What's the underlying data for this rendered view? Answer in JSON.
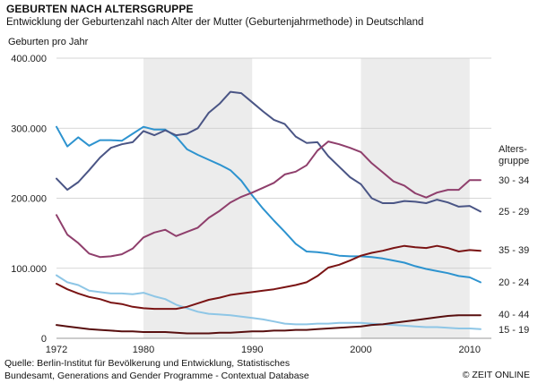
{
  "header": {
    "title": "GEBURTEN NACH ALTERSGRUPPE",
    "subtitle": "Entwicklung der Geburtenzahl nach Alter der Mutter (Geburtenjahrmethode) in Deutschland"
  },
  "chart_data": {
    "type": "line",
    "title": "GEBURTEN NACH ALTERSGRUPPE",
    "subtitle": "Entwicklung der Geburtenzahl nach Alter der Mutter (Geburtenjahrmethode) in Deutschland",
    "ylabel": "Geburten pro Jahr",
    "xlabel": "",
    "xlim": [
      1972,
      2012
    ],
    "ylim": [
      0,
      400000
    ],
    "x_ticks": [
      {
        "value": 1972,
        "label": "1972"
      },
      {
        "value": 1980,
        "label": "1980"
      },
      {
        "value": 1990,
        "label": "1990"
      },
      {
        "value": 2000,
        "label": "2000"
      },
      {
        "value": 2010,
        "label": "2010"
      }
    ],
    "y_ticks": [
      {
        "value": 0,
        "label": "0"
      },
      {
        "value": 100000,
        "label": "100.000"
      },
      {
        "value": 200000,
        "label": "200.000"
      },
      {
        "value": 300000,
        "label": "300.000"
      },
      {
        "value": 400000,
        "label": "400.000"
      }
    ],
    "grid": true,
    "shaded_decades": [
      [
        1980,
        1990
      ],
      [
        2000,
        2010
      ]
    ],
    "legend_title": "Alters-\ngruppe",
    "legend_placement": "right, end of lines",
    "series": [
      {
        "name": "15 - 19",
        "color": "#8ec6e6",
        "x": [
          1972,
          1973,
          1974,
          1975,
          1976,
          1977,
          1978,
          1979,
          1980,
          1981,
          1982,
          1983,
          1984,
          1985,
          1986,
          1987,
          1988,
          1989,
          1990,
          1991,
          1992,
          1993,
          1994,
          1995,
          1996,
          1997,
          1998,
          1999,
          2000,
          2001,
          2002,
          2003,
          2004,
          2005,
          2006,
          2007,
          2008,
          2009,
          2010,
          2011
        ],
        "y": [
          90000,
          80000,
          76000,
          68000,
          66000,
          64000,
          64000,
          63000,
          65000,
          60000,
          56000,
          48000,
          43000,
          38000,
          35000,
          34000,
          33000,
          31000,
          29000,
          27000,
          24000,
          21000,
          20000,
          20000,
          21000,
          21000,
          22000,
          22000,
          22000,
          21000,
          20000,
          19000,
          18000,
          17000,
          16000,
          16000,
          15000,
          14000,
          14000,
          13000
        ]
      },
      {
        "name": "20 - 24",
        "color": "#2d93cf",
        "x": [
          1972,
          1973,
          1974,
          1975,
          1976,
          1977,
          1978,
          1979,
          1980,
          1981,
          1982,
          1983,
          1984,
          1985,
          1986,
          1987,
          1988,
          1989,
          1990,
          1991,
          1992,
          1993,
          1994,
          1995,
          1996,
          1997,
          1998,
          1999,
          2000,
          2001,
          2002,
          2003,
          2004,
          2005,
          2006,
          2007,
          2008,
          2009,
          2010,
          2011
        ],
        "y": [
          302000,
          274000,
          287000,
          275000,
          283000,
          283000,
          282000,
          292000,
          302000,
          298000,
          298000,
          288000,
          270000,
          262000,
          255000,
          248000,
          240000,
          225000,
          204000,
          185000,
          168000,
          152000,
          135000,
          124000,
          123000,
          121000,
          118000,
          117000,
          117000,
          116000,
          114000,
          111000,
          108000,
          103000,
          99000,
          96000,
          93000,
          89000,
          87000,
          80000
        ]
      },
      {
        "name": "25 - 29",
        "color": "#4a5585",
        "x": [
          1972,
          1973,
          1974,
          1975,
          1976,
          1977,
          1978,
          1979,
          1980,
          1981,
          1982,
          1983,
          1984,
          1985,
          1986,
          1987,
          1988,
          1989,
          1990,
          1991,
          1992,
          1993,
          1994,
          1995,
          1996,
          1997,
          1998,
          1999,
          2000,
          2001,
          2002,
          2003,
          2004,
          2005,
          2006,
          2007,
          2008,
          2009,
          2010,
          2011
        ],
        "y": [
          228000,
          212000,
          223000,
          240000,
          258000,
          272000,
          277000,
          280000,
          296000,
          290000,
          297000,
          290000,
          292000,
          300000,
          322000,
          335000,
          352000,
          350000,
          337000,
          324000,
          312000,
          306000,
          288000,
          279000,
          280000,
          260000,
          245000,
          230000,
          220000,
          200000,
          193000,
          193000,
          196000,
          195000,
          193000,
          198000,
          194000,
          188000,
          189000,
          181000
        ]
      },
      {
        "name": "30 - 34",
        "color": "#8f3f6c",
        "x": [
          1972,
          1973,
          1974,
          1975,
          1976,
          1977,
          1978,
          1979,
          1980,
          1981,
          1982,
          1983,
          1984,
          1985,
          1986,
          1987,
          1988,
          1989,
          1990,
          1991,
          1992,
          1993,
          1994,
          1995,
          1996,
          1997,
          1998,
          1999,
          2000,
          2001,
          2002,
          2003,
          2004,
          2005,
          2006,
          2007,
          2008,
          2009,
          2010,
          2011
        ],
        "y": [
          176000,
          148000,
          136000,
          121000,
          116000,
          117000,
          120000,
          128000,
          144000,
          151000,
          155000,
          146000,
          152000,
          158000,
          172000,
          182000,
          194000,
          202000,
          208000,
          215000,
          222000,
          234000,
          238000,
          247000,
          268000,
          281000,
          277000,
          272000,
          266000,
          250000,
          237000,
          224000,
          218000,
          207000,
          201000,
          208000,
          212000,
          212000,
          226000,
          226000
        ]
      },
      {
        "name": "35 - 39",
        "color": "#7a1414",
        "x": [
          1972,
          1973,
          1974,
          1975,
          1976,
          1977,
          1978,
          1979,
          1980,
          1981,
          1982,
          1983,
          1984,
          1985,
          1986,
          1987,
          1988,
          1989,
          1990,
          1991,
          1992,
          1993,
          1994,
          1995,
          1996,
          1997,
          1998,
          1999,
          2000,
          2001,
          2002,
          2003,
          2004,
          2005,
          2006,
          2007,
          2008,
          2009,
          2010,
          2011
        ],
        "y": [
          78000,
          70000,
          64000,
          59000,
          56000,
          51000,
          49000,
          45000,
          43000,
          42000,
          42000,
          42000,
          45000,
          50000,
          55000,
          58000,
          62000,
          64000,
          66000,
          68000,
          70000,
          73000,
          76000,
          80000,
          89000,
          101000,
          105000,
          111000,
          118000,
          122000,
          125000,
          129000,
          132000,
          130000,
          129000,
          132000,
          129000,
          124000,
          126000,
          125000
        ]
      },
      {
        "name": "40 - 44",
        "color": "#580f0f",
        "x": [
          1972,
          1973,
          1974,
          1975,
          1976,
          1977,
          1978,
          1979,
          1980,
          1981,
          1982,
          1983,
          1984,
          1985,
          1986,
          1987,
          1988,
          1989,
          1990,
          1991,
          1992,
          1993,
          1994,
          1995,
          1996,
          1997,
          1998,
          1999,
          2000,
          2001,
          2002,
          2003,
          2004,
          2005,
          2006,
          2007,
          2008,
          2009,
          2010,
          2011
        ],
        "y": [
          19000,
          17000,
          15000,
          13000,
          12000,
          11000,
          10000,
          10000,
          9000,
          9000,
          9000,
          8000,
          7000,
          7000,
          7000,
          8000,
          8000,
          9000,
          10000,
          10000,
          11000,
          11000,
          12000,
          12000,
          13000,
          14000,
          15000,
          16000,
          17000,
          19000,
          20000,
          22000,
          24000,
          26000,
          28000,
          30000,
          32000,
          33000,
          33000,
          33000
        ]
      }
    ]
  },
  "footer": {
    "source_line1": "Quelle: Berlin-Institut für Bevölkerung und Entwicklung, Statistisches",
    "source_line2": "Bundesamt, Generations and Gender Programme - Contextual Database",
    "credit": "© ZEIT ONLINE"
  }
}
